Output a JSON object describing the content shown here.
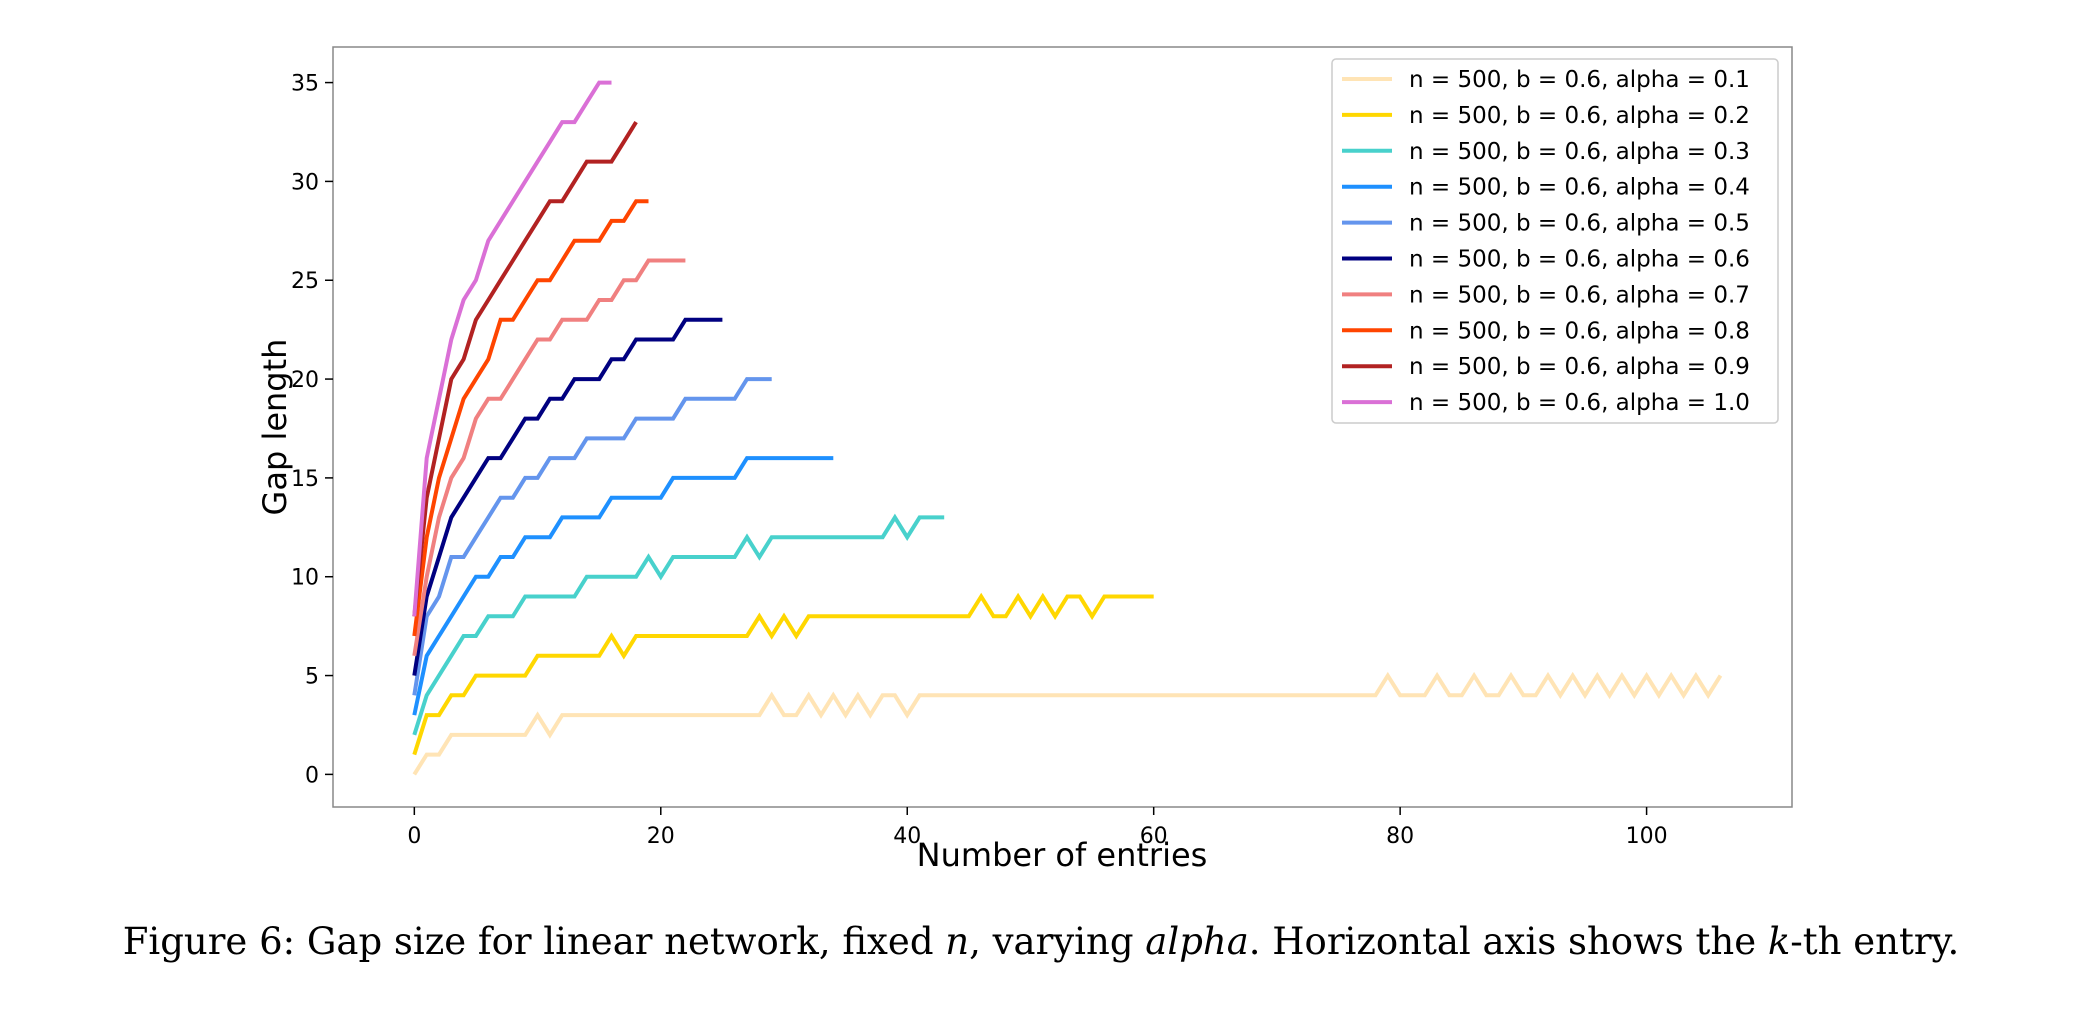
{
  "chart_data": {
    "type": "line",
    "xlabel": "Number of entries",
    "ylabel": "Gap length",
    "xlim": [
      -6.6,
      111.8
    ],
    "ylim": [
      -1.65,
      36.8
    ],
    "xticks": [
      0,
      20,
      40,
      60,
      80,
      100
    ],
    "yticks": [
      0,
      5,
      10,
      15,
      20,
      25,
      30,
      35
    ],
    "grid": false,
    "legend_position": "top-right",
    "series": [
      {
        "name": "n = 500, b = 0.6, alpha = 0.1",
        "color": "#FFE4B5",
        "y": [
          0,
          1,
          1,
          2,
          2,
          2,
          2,
          2,
          2,
          2,
          3,
          2,
          3,
          3,
          3,
          3,
          3,
          3,
          3,
          3,
          3,
          3,
          3,
          3,
          3,
          3,
          3,
          3,
          3,
          4,
          3,
          3,
          4,
          3,
          4,
          3,
          4,
          3,
          4,
          4,
          3,
          4,
          4,
          4,
          4,
          4,
          4,
          4,
          4,
          4,
          4,
          4,
          4,
          4,
          4,
          4,
          4,
          4,
          4,
          4,
          4,
          4,
          4,
          4,
          4,
          4,
          4,
          4,
          4,
          4,
          4,
          4,
          4,
          4,
          4,
          4,
          4,
          4,
          4,
          5,
          4,
          4,
          4,
          5,
          4,
          4,
          5,
          4,
          4,
          5,
          4,
          4,
          5,
          4,
          5,
          4,
          5,
          4,
          5,
          4,
          5,
          4,
          5,
          4,
          5,
          4,
          5
        ]
      },
      {
        "name": "n = 500, b = 0.6, alpha = 0.2",
        "color": "#FFD700",
        "y": [
          1,
          3,
          3,
          4,
          4,
          5,
          5,
          5,
          5,
          5,
          6,
          6,
          6,
          6,
          6,
          6,
          7,
          6,
          7,
          7,
          7,
          7,
          7,
          7,
          7,
          7,
          7,
          7,
          8,
          7,
          8,
          7,
          8,
          8,
          8,
          8,
          8,
          8,
          8,
          8,
          8,
          8,
          8,
          8,
          8,
          8,
          9,
          8,
          8,
          9,
          8,
          9,
          8,
          9,
          9,
          8,
          9,
          9,
          9,
          9,
          9
        ]
      },
      {
        "name": "n = 500, b = 0.6, alpha = 0.3",
        "color": "#48D1CC",
        "y": [
          2,
          4,
          5,
          6,
          7,
          7,
          8,
          8,
          8,
          9,
          9,
          9,
          9,
          9,
          10,
          10,
          10,
          10,
          10,
          11,
          10,
          11,
          11,
          11,
          11,
          11,
          11,
          12,
          11,
          12,
          12,
          12,
          12,
          12,
          12,
          12,
          12,
          12,
          12,
          13,
          12,
          13,
          13,
          13
        ]
      },
      {
        "name": "n = 500, b = 0.6, alpha = 0.4",
        "color": "#1E90FF",
        "y": [
          3,
          6,
          7,
          8,
          9,
          10,
          10,
          11,
          11,
          12,
          12,
          12,
          13,
          13,
          13,
          13,
          14,
          14,
          14,
          14,
          14,
          15,
          15,
          15,
          15,
          15,
          15,
          16,
          16,
          16,
          16,
          16,
          16,
          16,
          16
        ]
      },
      {
        "name": "n = 500, b = 0.6, alpha = 0.5",
        "color": "#6495ED",
        "y": [
          4,
          8,
          9,
          11,
          11,
          12,
          13,
          14,
          14,
          15,
          15,
          16,
          16,
          16,
          17,
          17,
          17,
          17,
          18,
          18,
          18,
          18,
          19,
          19,
          19,
          19,
          19,
          20,
          20,
          20
        ]
      },
      {
        "name": "n = 500, b = 0.6, alpha = 0.6",
        "color": "#000080",
        "y": [
          5,
          9,
          11,
          13,
          14,
          15,
          16,
          16,
          17,
          18,
          18,
          19,
          19,
          20,
          20,
          20,
          21,
          21,
          22,
          22,
          22,
          22,
          23,
          23,
          23,
          23
        ]
      },
      {
        "name": "n = 500, b = 0.6, alpha = 0.7",
        "color": "#F08080",
        "y": [
          6,
          10,
          13,
          15,
          16,
          18,
          19,
          19,
          20,
          21,
          22,
          22,
          23,
          23,
          23,
          24,
          24,
          25,
          25,
          26,
          26,
          26,
          26
        ]
      },
      {
        "name": "n = 500, b = 0.6, alpha = 0.8",
        "color": "#FF4500",
        "y": [
          7,
          12,
          15,
          17,
          19,
          20,
          21,
          23,
          23,
          24,
          25,
          25,
          26,
          27,
          27,
          27,
          28,
          28,
          29,
          29
        ]
      },
      {
        "name": "n = 500, b = 0.6, alpha = 0.9",
        "color": "#B22222",
        "y": [
          8,
          14,
          17,
          20,
          21,
          23,
          24,
          25,
          26,
          27,
          28,
          29,
          29,
          30,
          31,
          31,
          31,
          32,
          33
        ]
      },
      {
        "name": "n = 500, b = 0.6, alpha = 1.0",
        "color": "#DA70D6",
        "y": [
          8,
          16,
          19,
          22,
          24,
          25,
          27,
          28,
          29,
          30,
          31,
          32,
          33,
          33,
          34,
          35,
          35
        ]
      }
    ]
  },
  "caption": {
    "prefix": "Figure 6: Gap size for linear network, fixed ",
    "n": "n",
    "mid": ", varying ",
    "alpha": "alpha",
    "mid2": ". Horizontal axis shows the ",
    "k": "k",
    "suffix": "-th entry."
  }
}
